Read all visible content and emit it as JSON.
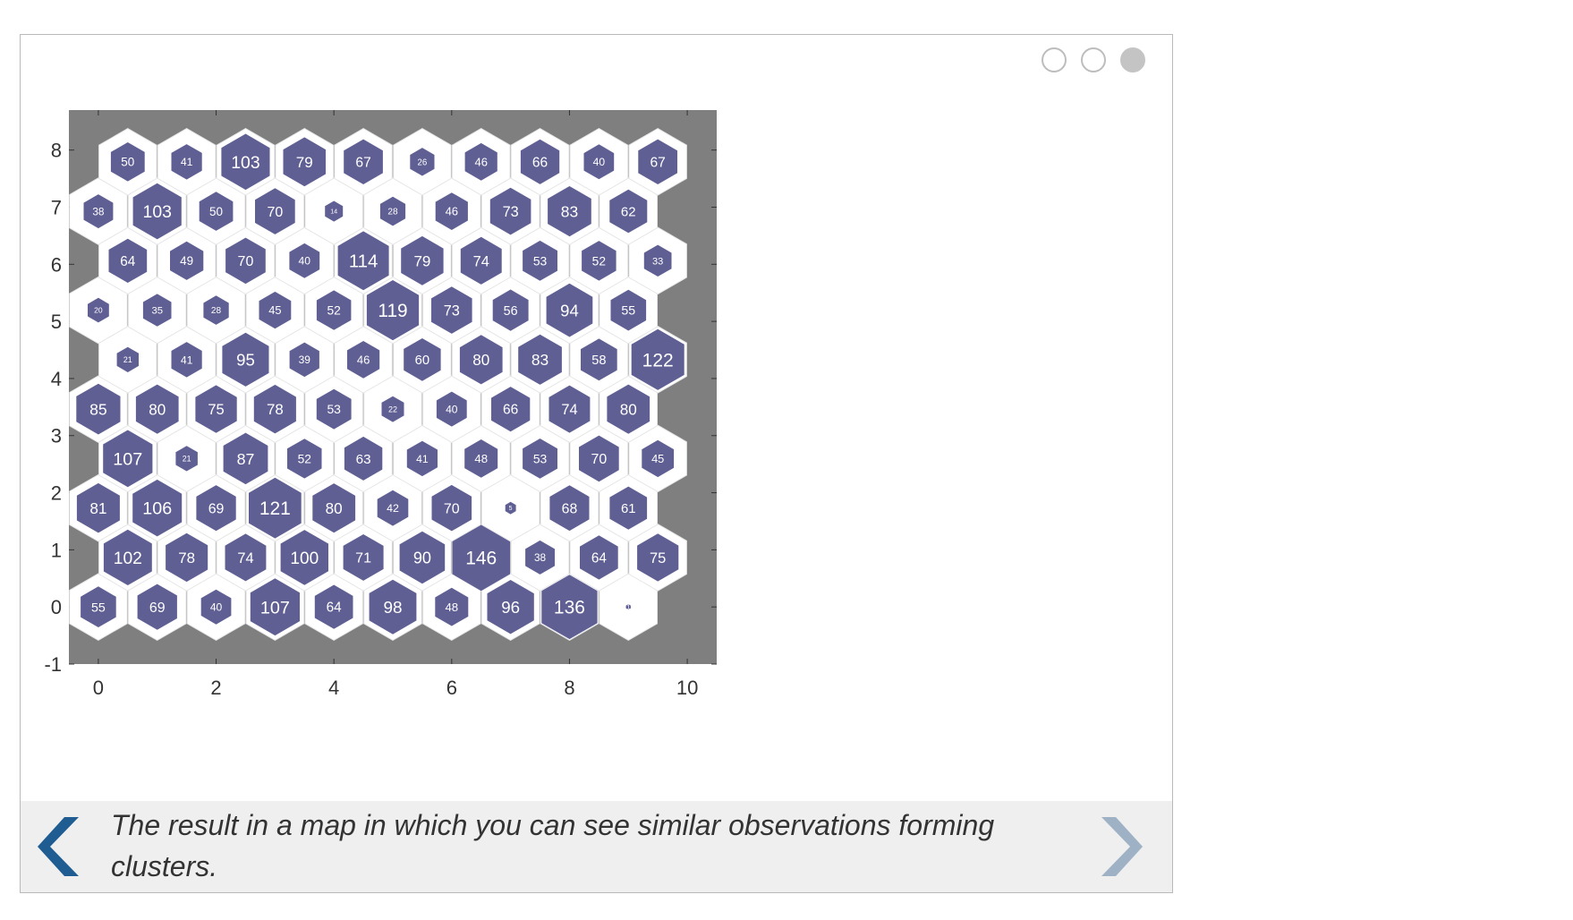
{
  "carousel": {
    "dots": [
      {
        "state": "inactive"
      },
      {
        "state": "inactive"
      },
      {
        "state": "active"
      }
    ],
    "caption": "The result in a map in which you can see similar observations forming clusters.",
    "prev_icon": "chevron-left-icon",
    "next_icon": "chevron-right-icon",
    "colors": {
      "prev_arrow": "#1f5c92",
      "next_arrow": "#9fb2c5"
    }
  },
  "chart_data": {
    "type": "heatmap",
    "title": "",
    "xlabel": "",
    "ylabel": "",
    "xlim": [
      -0.5,
      10.5
    ],
    "ylim": [
      -1,
      8.7
    ],
    "x_ticks": [
      0,
      2,
      4,
      6,
      8,
      10
    ],
    "y_ticks": [
      -1,
      0,
      1,
      2,
      3,
      4,
      5,
      6,
      7,
      8
    ],
    "colors": {
      "background": "#7f7f7f",
      "cell": "#ffffff",
      "fill": "#5f5f94",
      "label": "#ffffff"
    },
    "max_hits": 146,
    "rows": [
      {
        "y": 0,
        "x0": 0,
        "hits": [
          55,
          69,
          40,
          107,
          64,
          98,
          48,
          96,
          136,
          1
        ]
      },
      {
        "y": 1,
        "x0": 0.5,
        "hits": [
          102,
          78,
          74,
          100,
          71,
          90,
          146,
          38,
          64,
          75
        ]
      },
      {
        "y": 2,
        "x0": 0,
        "hits": [
          81,
          106,
          69,
          121,
          80,
          42,
          70,
          5,
          68,
          61
        ]
      },
      {
        "y": 3,
        "x0": 0.5,
        "hits": [
          107,
          21,
          87,
          52,
          63,
          41,
          48,
          53,
          70,
          45
        ]
      },
      {
        "y": 4,
        "x0": 0,
        "hits": [
          85,
          80,
          75,
          78,
          53,
          22,
          40,
          66,
          74,
          80
        ]
      },
      {
        "y": 5,
        "x0": 0.5,
        "hits": [
          21,
          41,
          95,
          39,
          46,
          60,
          80,
          83,
          58,
          122
        ]
      },
      {
        "y": 6,
        "x0": 0,
        "hits": [
          20,
          35,
          28,
          45,
          52,
          119,
          73,
          56,
          94,
          55
        ]
      },
      {
        "y": 7,
        "x0": 0.5,
        "hits": [
          64,
          49,
          70,
          40,
          114,
          79,
          74,
          53,
          52,
          33
        ]
      },
      {
        "y": 8,
        "x0": 0,
        "hits": [
          38,
          103,
          50,
          70,
          14,
          28,
          46,
          73,
          83,
          62
        ]
      },
      {
        "y": 9,
        "x0": 0.5,
        "hits": [
          50,
          41,
          103,
          79,
          67,
          26,
          46,
          66,
          40,
          67
        ]
      }
    ],
    "row_y_values": [
      0,
      0.866,
      1.732,
      2.598,
      3.464,
      4.33,
      5.196,
      6.062,
      6.928,
      7.794
    ]
  }
}
